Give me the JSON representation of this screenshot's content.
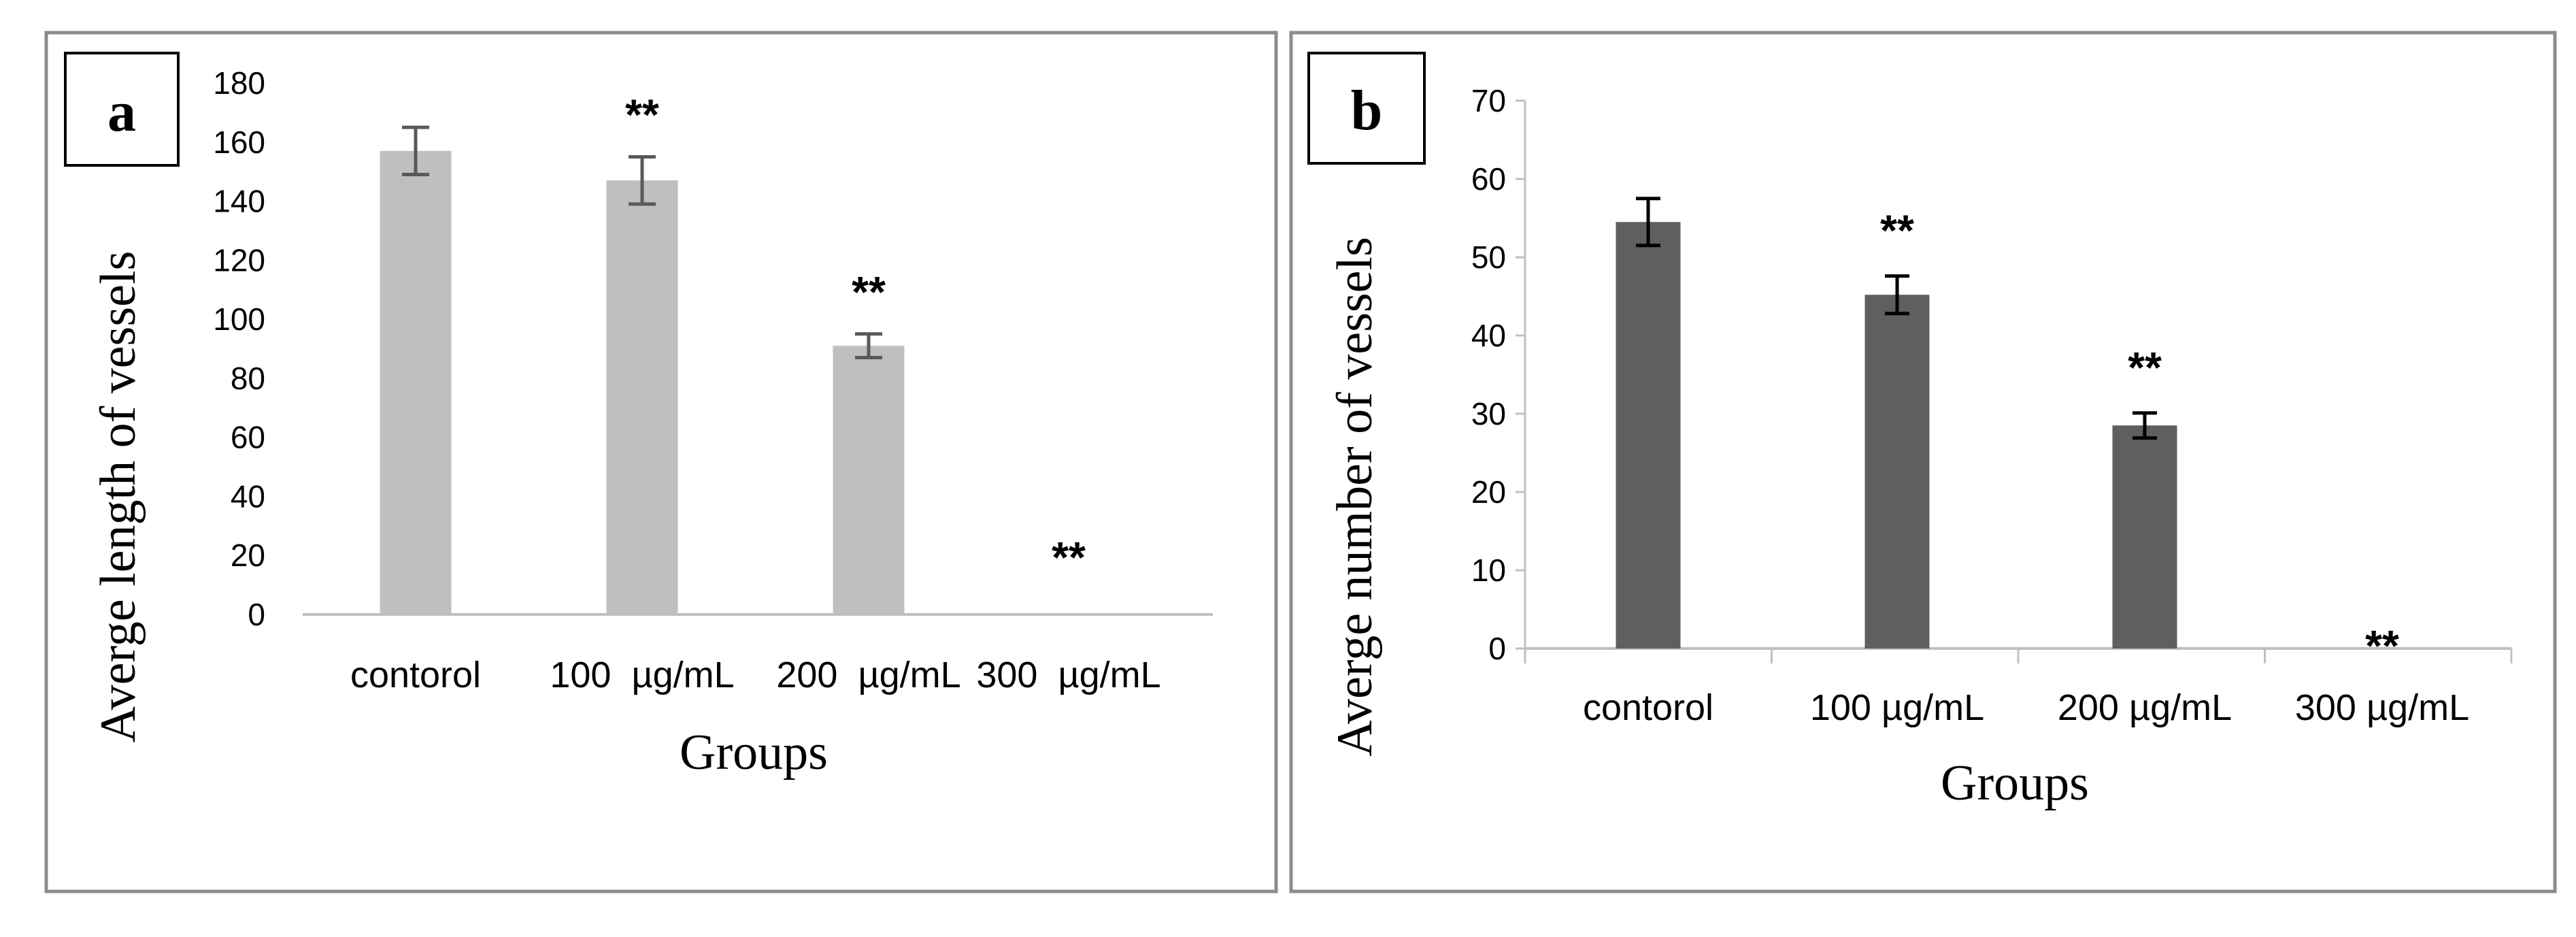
{
  "colors": {
    "panel_a_bar": "#bfbfbf",
    "panel_b_bar": "#5f5f5f",
    "axis": "#bfbfbf",
    "frame": "#8c8c8c",
    "error_a": "#595959",
    "error_b": "#000000"
  },
  "chart_data": [
    {
      "type": "bar",
      "panel_label": "a",
      "categories": [
        "contorol",
        "100  µg/mL",
        "200  µg/mL",
        "300  µg/mL"
      ],
      "values": [
        157,
        147,
        91,
        0
      ],
      "errors": [
        8,
        8,
        4,
        0
      ],
      "significance": [
        "",
        "**",
        "**",
        "**"
      ],
      "yticks": [
        "0",
        "20",
        "40",
        "60",
        "80",
        "100",
        "120",
        "140",
        "160",
        "180"
      ],
      "ylim": [
        0,
        180
      ],
      "xlabel": "Groups",
      "ylabel": "Averge length of vessels",
      "grid": false
    },
    {
      "type": "bar",
      "panel_label": "b",
      "categories": [
        "contorol",
        "100 µg/mL",
        "200 µg/mL",
        "300 µg/mL"
      ],
      "values": [
        54.5,
        45.2,
        28.5,
        0
      ],
      "errors": [
        3,
        2.4,
        1.6,
        0
      ],
      "significance": [
        "",
        "**",
        "**",
        "**"
      ],
      "yticks": [
        "0",
        "10",
        "20",
        "30",
        "40",
        "50",
        "60",
        "70"
      ],
      "ylim": [
        0,
        70
      ],
      "xlabel": "Groups",
      "ylabel": "Averge number of vessels",
      "grid": false
    }
  ]
}
